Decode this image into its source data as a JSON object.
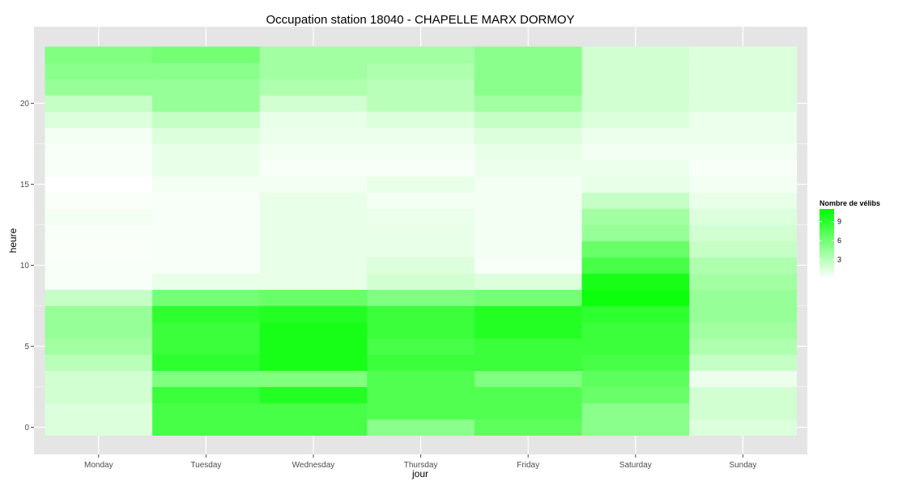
{
  "chart_data": {
    "type": "heatmap",
    "title": "Occupation station 18040 - CHAPELLE MARX DORMOY",
    "xlabel": "jour",
    "ylabel": "heure",
    "x_categories": [
      "Monday",
      "Tuesday",
      "Wednesday",
      "Thursday",
      "Friday",
      "Saturday",
      "Sunday"
    ],
    "y_range": [
      -0.5,
      23.5
    ],
    "y_ticks": [
      0,
      5,
      10,
      15,
      20
    ],
    "y_tick_labels": [
      "0",
      "5",
      "10",
      "15",
      "20"
    ],
    "hours": [
      0,
      1,
      2,
      3,
      4,
      5,
      6,
      7,
      8,
      9,
      10,
      11,
      12,
      13,
      14,
      15,
      16,
      17,
      18,
      19,
      20,
      21,
      22,
      23
    ],
    "values": [
      [
        1.5,
        8.0,
        8.0,
        5.0,
        7.0,
        5.0,
        1.5
      ],
      [
        1.5,
        8.0,
        8.0,
        7.5,
        7.5,
        5.0,
        2.0
      ],
      [
        2.0,
        8.5,
        9.5,
        7.5,
        7.5,
        6.5,
        2.0
      ],
      [
        2.0,
        5.5,
        5.5,
        7.5,
        5.5,
        7.0,
        0.8
      ],
      [
        3.0,
        9.0,
        10.0,
        8.5,
        8.5,
        8.0,
        2.5
      ],
      [
        4.0,
        8.5,
        10.0,
        8.0,
        8.5,
        8.5,
        3.5
      ],
      [
        4.5,
        8.5,
        10.0,
        8.5,
        9.5,
        8.5,
        4.0
      ],
      [
        4.5,
        9.0,
        9.5,
        8.5,
        9.5,
        9.0,
        4.5
      ],
      [
        2.5,
        6.0,
        6.5,
        5.5,
        6.0,
        10.5,
        4.5
      ],
      [
        0.3,
        1.0,
        1.0,
        2.0,
        1.5,
        10.0,
        4.0
      ],
      [
        0.3,
        0.3,
        1.0,
        1.5,
        0.3,
        8.0,
        3.5
      ],
      [
        0.2,
        0.3,
        1.0,
        1.0,
        0.5,
        6.5,
        2.5
      ],
      [
        0.3,
        0.3,
        1.0,
        1.0,
        0.5,
        4.5,
        2.0
      ],
      [
        0.5,
        0.3,
        1.0,
        0.8,
        0.5,
        4.0,
        1.5
      ],
      [
        0.2,
        0.3,
        1.0,
        0.5,
        0.5,
        2.5,
        1.0
      ],
      [
        0.0,
        0.5,
        0.5,
        1.0,
        0.5,
        1.0,
        0.5
      ],
      [
        0.3,
        1.0,
        0.3,
        0.3,
        0.8,
        0.8,
        0.3
      ],
      [
        0.3,
        1.0,
        0.5,
        0.5,
        1.0,
        0.5,
        0.5
      ],
      [
        0.5,
        1.5,
        0.8,
        0.8,
        1.5,
        0.8,
        0.8
      ],
      [
        1.5,
        2.5,
        1.0,
        1.5,
        2.5,
        1.5,
        0.8
      ],
      [
        2.5,
        4.5,
        2.0,
        3.0,
        4.0,
        2.0,
        1.5
      ],
      [
        4.5,
        4.5,
        3.5,
        3.0,
        5.0,
        2.0,
        1.5
      ],
      [
        5.0,
        5.0,
        4.0,
        3.5,
        5.0,
        2.0,
        1.5
      ],
      [
        5.5,
        6.0,
        4.0,
        4.0,
        5.0,
        2.0,
        1.5
      ]
    ],
    "color_scale": {
      "low": "#ffffff",
      "high": "#00ff00",
      "min": 0,
      "max": 11
    },
    "legend": {
      "title": "Nombre de vélibs",
      "breaks": [
        3,
        6,
        9
      ],
      "labels": [
        "3",
        "6",
        "9"
      ],
      "position": "right"
    },
    "grid": true,
    "panel_background": "#e5e5e5",
    "grid_color": "#ffffff"
  }
}
